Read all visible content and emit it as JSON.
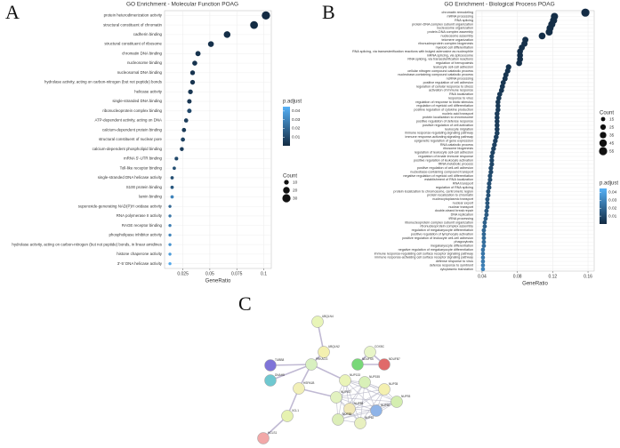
{
  "panel_labels": [
    "A",
    "B",
    "C"
  ],
  "chart_data": [
    {
      "type": "dot",
      "title": "GO Enrichment - Molecular Function POAG",
      "x_label": "GeneRatio",
      "categories": [
        "protein heterodimerization activity",
        "structural constituent of chromatin",
        "cadherin binding",
        "structural constituent of ribosome",
        "chromatin DNA binding",
        "nucleosome binding",
        "nucleosomal DNA binding",
        "hydrolase activity, acting on carbon-nitrogen (but not peptide) bonds",
        "helicase activity",
        "single-stranded DNA binding",
        "ribonucleoprotein complex binding",
        "ATP-dependent activity, acting on DNA",
        "calcium-dependent protein binding",
        "structural constituent of nuclear pore",
        "calcium-dependent phospholipid binding",
        "mRNA 5'-UTR binding",
        "Toll-like receptor binding",
        "single-stranded DNA helicase activity",
        "S100 protein binding",
        "lamin binding",
        "superoxide-generating NAD(P)H oxidase activity",
        "RNA polymerase II activity",
        "RAGE receptor binding",
        "phospholipase inhibitor activity",
        "hydrolase activity, acting on carbon-nitrogen (but not peptide) bonds, in linear amidines",
        "histone chaperone activity",
        "3'-5' DNA helicase activity"
      ],
      "values": [
        0.102,
        0.091,
        0.066,
        0.051,
        0.039,
        0.036,
        0.034,
        0.034,
        0.032,
        0.031,
        0.031,
        0.028,
        0.026,
        0.025,
        0.024,
        0.019,
        0.017,
        0.015,
        0.015,
        0.015,
        0.013,
        0.013,
        0.013,
        0.013,
        0.013,
        0.013,
        0.013
      ],
      "counts": [
        31,
        27,
        20,
        15,
        12,
        11,
        10,
        10,
        10,
        9,
        9,
        8,
        8,
        8,
        7,
        6,
        5,
        5,
        5,
        5,
        4,
        4,
        4,
        4,
        4,
        4,
        4
      ],
      "p_adjust": [
        0.0001,
        0.0002,
        0.001,
        0.002,
        0.003,
        0.003,
        0.003,
        0.003,
        0.004,
        0.004,
        0.01,
        0.006,
        0.005,
        0.008,
        0.006,
        0.01,
        0.012,
        0.012,
        0.015,
        0.03,
        0.02,
        0.025,
        0.028,
        0.03,
        0.035,
        0.038,
        0.042
      ],
      "xlim": [
        0.008,
        0.107
      ],
      "xticks": [
        0.025,
        0.05,
        0.075,
        0.1
      ],
      "grid": true,
      "color_legend_title": "p.adjust",
      "color_lim": [
        0.0,
        0.045
      ],
      "color_ticks": [
        0.01,
        0.02,
        0.03,
        0.04
      ],
      "color_low": "#132B43",
      "color_high": "#56B1F7",
      "size_legend_title": "Count",
      "size_ticks": [
        10,
        20,
        30
      ]
    },
    {
      "type": "dot",
      "title": "GO Enrichment - Biological Process POAG",
      "x_label": "GeneRatio",
      "categories": [
        "chromatin remodeling",
        "mRNA processing",
        "RNA splicing",
        "protein-DNA complex subunit organization",
        "nucleosome organization",
        "protein-DNA complex assembly",
        "nucleosome assembly",
        "telomere organization",
        "ribonucleoprotein complex biogenesis",
        "myeloid cell differentiation",
        "RNA splicing, via transesterification reactions with bulged adenosine as nucleophile",
        "mRNA splicing, via spliceosome",
        "RNA splicing, via transesterification reactions",
        "regulation of hemopoiesis",
        "leukocyte cell-cell adhesion",
        "cellular nitrogen compound catabolic process",
        "nucleobase-containing compound catabolic process",
        "ncRNA processing",
        "positive regulation of cell adhesion",
        "regulation of cellular response to stress",
        "activation of immune response",
        "RNA localization",
        "response to virus",
        "regulation of response to biotic stimulus",
        "regulation of myeloid cell differentiation",
        "positive regulation of cytokine production",
        "nucleic acid transport",
        "protein localization to chromosome",
        "positive regulation of defense response",
        "positive regulation of cell activation",
        "leukocyte migration",
        "immune response-regulating signaling pathway",
        "immune response-activating signaling pathway",
        "epigenetic regulation of gene expression",
        "RNA catabolic process",
        "ribosome biogenesis",
        "regulation of leukocyte cell-cell adhesion",
        "regulation of innate immune response",
        "positive regulation of leukocyte activation",
        "tRNA metabolic process",
        "positive regulation of cell-cell adhesion",
        "nucleobase-containing compound transport",
        "negative regulation of myeloid cell differentiation",
        "establishment of RNA localization",
        "RNA transport",
        "regulation of RNA splicing",
        "protein localization to chromosome, centromeric region",
        "protein localization to chromatin",
        "nucleocytoplasmic transport",
        "nuclear export",
        "nuclear transport",
        "double-strand break repair",
        "DNA replication",
        "tRNA processing",
        "ribonucleoprotein complex subunit organization",
        "ribonucleoprotein complex assembly",
        "regulation of megakaryocyte differentiation",
        "positive regulation of lymphocyte activation",
        "positive regulation of leukocyte cell-cell adhesion",
        "phagocytosis",
        "megakaryocyte differentiation",
        "negative regulation of megakaryocyte differentiation",
        "immune response-regulating cell surface receptor signaling pathway",
        "immune response-activating cell surface receptor signaling pathway",
        "defense response to virus",
        "defense response to symbiont",
        "cytoplasmic translation"
      ],
      "values": [
        0.157,
        0.122,
        0.121,
        0.119,
        0.117,
        0.116,
        0.108,
        0.089,
        0.088,
        0.085,
        0.083,
        0.083,
        0.083,
        0.082,
        0.07,
        0.069,
        0.067,
        0.066,
        0.064,
        0.063,
        0.062,
        0.06,
        0.059,
        0.058,
        0.058,
        0.058,
        0.057,
        0.057,
        0.057,
        0.057,
        0.057,
        0.057,
        0.056,
        0.055,
        0.054,
        0.053,
        0.052,
        0.051,
        0.051,
        0.051,
        0.05,
        0.05,
        0.049,
        0.049,
        0.048,
        0.048,
        0.047,
        0.047,
        0.046,
        0.046,
        0.046,
        0.045,
        0.045,
        0.044,
        0.043,
        0.043,
        0.042,
        0.042,
        0.042,
        0.042,
        0.042,
        0.041,
        0.041,
        0.041,
        0.041,
        0.041,
        0.041
      ],
      "counts": [
        55,
        43,
        42,
        42,
        41,
        41,
        38,
        31,
        31,
        30,
        29,
        29,
        29,
        29,
        25,
        24,
        23,
        23,
        22,
        22,
        22,
        21,
        21,
        20,
        20,
        20,
        20,
        20,
        20,
        20,
        20,
        20,
        20,
        19,
        19,
        19,
        18,
        18,
        18,
        18,
        18,
        18,
        17,
        17,
        17,
        17,
        16,
        16,
        16,
        16,
        16,
        16,
        16,
        15,
        15,
        15,
        15,
        15,
        15,
        15,
        15,
        14,
        14,
        14,
        14,
        14,
        14
      ],
      "p_adjust": [
        0.0005,
        0.001,
        0.001,
        0.001,
        0.001,
        0.001,
        0.001,
        0.002,
        0.002,
        0.002,
        0.002,
        0.002,
        0.002,
        0.002,
        0.003,
        0.003,
        0.003,
        0.003,
        0.004,
        0.004,
        0.004,
        0.005,
        0.005,
        0.005,
        0.005,
        0.006,
        0.006,
        0.006,
        0.006,
        0.006,
        0.006,
        0.007,
        0.007,
        0.007,
        0.008,
        0.008,
        0.008,
        0.009,
        0.009,
        0.009,
        0.01,
        0.01,
        0.011,
        0.011,
        0.012,
        0.012,
        0.013,
        0.013,
        0.014,
        0.014,
        0.015,
        0.015,
        0.016,
        0.017,
        0.018,
        0.018,
        0.02,
        0.02,
        0.021,
        0.022,
        0.023,
        0.024,
        0.025,
        0.026,
        0.027,
        0.028,
        0.03
      ],
      "xlim": [
        0.033,
        0.167
      ],
      "xticks": [
        0.04,
        0.08,
        0.12,
        0.16
      ],
      "grid": true,
      "color_legend_title": "p.adjust",
      "color_lim": [
        0.0,
        0.045
      ],
      "color_ticks": [
        0.01,
        0.02,
        0.03,
        0.04
      ],
      "color_low": "#132B43",
      "color_high": "#56B1F7",
      "size_legend_title": "Count",
      "size_ticks": [
        15,
        25,
        35,
        45,
        55
      ]
    }
  ],
  "network": {
    "nodes": [
      "UBQLN4",
      "UBQLN2",
      "TUBB8",
      "DNAH8",
      "PRKACG",
      "HSPA1B",
      "XCL1",
      "HCLS1",
      "COX5C",
      "NDUFS5",
      "NDUFB7",
      "NUP133",
      "NUP155",
      "NUP35",
      "NUP107",
      "NUP93",
      "NUP88",
      "NUP50",
      "NUP62",
      "NUP85"
    ]
  }
}
